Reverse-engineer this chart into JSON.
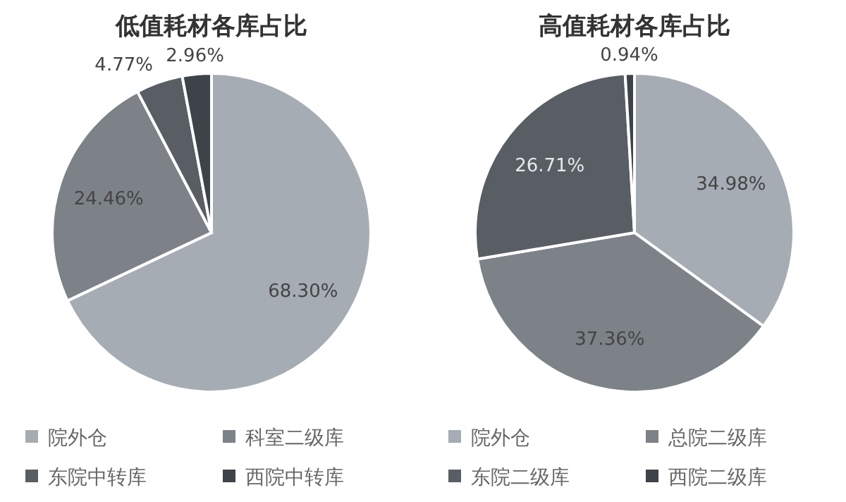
{
  "chart_data": [
    {
      "type": "pie",
      "title": "低值耗材各库占比",
      "categories": [
        "院外仓",
        "科室二级库",
        "东院中转库",
        "西院中转库"
      ],
      "values": [
        68.3,
        24.46,
        4.77,
        2.96
      ],
      "colors": [
        "#a5acb3",
        "#7c8288",
        "#585e64",
        "#3e4349"
      ],
      "data_labels": true,
      "value_labels": [
        "68.30%",
        "24.46%",
        "4.77%",
        "2.96%"
      ],
      "legend": "bottom"
    },
    {
      "type": "pie",
      "title": "高值耗材各库占比",
      "categories": [
        "院外仓",
        "总院二级库",
        "东院二级库",
        "西院二级库"
      ],
      "values": [
        34.98,
        37.36,
        26.71,
        0.94
      ],
      "colors": [
        "#a5acb3",
        "#7c8288",
        "#585e64",
        "#3e4349"
      ],
      "data_labels": true,
      "value_labels": [
        "34.98%",
        "37.36%",
        "26.71%",
        "0.94%"
      ],
      "legend": "bottom"
    }
  ]
}
